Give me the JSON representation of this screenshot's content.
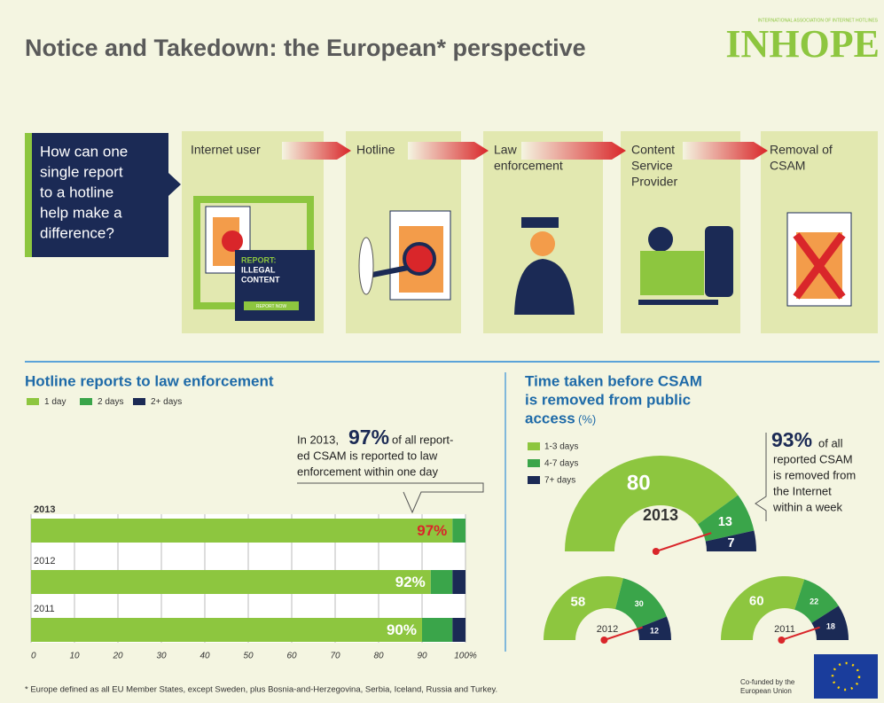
{
  "header": {
    "title": "Notice and Takedown: the European* perspective",
    "logo_tagline": "INTERNATIONAL ASSOCIATION OF INTERNET HOTLINES",
    "logo": "INHOPE"
  },
  "question": [
    "How can one",
    "single report",
    "to a hotline",
    "help make a",
    "difference?"
  ],
  "steps": [
    [
      "Internet user"
    ],
    [
      "Hotline"
    ],
    [
      "Law",
      "enforcement"
    ],
    [
      "Content",
      "Service",
      "Provider"
    ],
    [
      "Removal of",
      "CSAM"
    ]
  ],
  "illustration": {
    "report": [
      "REPORT:",
      "ILLEGAL",
      "CONTENT"
    ],
    "button": "REPORT NOW"
  },
  "chart_data": [
    {
      "type": "stacked-bar",
      "title": "Hotline reports to law enforcement",
      "categories": [
        "2013",
        "2012",
        "2011"
      ],
      "series": [
        {
          "name": "1 day",
          "color": "#8dc63f",
          "values": [
            97,
            92,
            90
          ],
          "value_labels": [
            "97%",
            "92%",
            "90%"
          ]
        },
        {
          "name": "2 days",
          "color": "#3aa54a",
          "values": [
            3,
            5,
            7
          ]
        },
        {
          "name": "2+ days",
          "color": "#1b2a55",
          "values": [
            0,
            3,
            3
          ]
        }
      ],
      "xlim": [
        0,
        100
      ],
      "xticks": [
        0,
        10,
        20,
        30,
        40,
        50,
        60,
        70,
        80,
        90,
        {
          "value": 100,
          "label": "100%"
        }
      ],
      "grid": true,
      "annotation": {
        "prefix": "In 2013,",
        "highlight": "97%",
        "lines": [
          "of all report-",
          "ed CSAM is reported to law",
          "enforcement within one day"
        ]
      }
    },
    {
      "type": "gauge",
      "title": [
        "Time taken before CSAM",
        "is removed from public",
        "access"
      ],
      "unit": "(%)",
      "categories": [
        "2013",
        "2012",
        "2011"
      ],
      "series": [
        {
          "name": "1-3 days",
          "color": "#8dc63f",
          "values": [
            80,
            58,
            60
          ]
        },
        {
          "name": "4-7 days",
          "color": "#3aa54a",
          "values": [
            13,
            30,
            22
          ]
        },
        {
          "name": "7+ days",
          "color": "#1b2a55",
          "values": [
            7,
            12,
            18
          ]
        }
      ],
      "annotation": {
        "highlight": "93%",
        "lines": [
          "of all",
          "reported CSAM",
          "is removed from",
          "the Internet",
          "within a week"
        ]
      }
    }
  ],
  "footer": {
    "note": "* Europe defined as all EU Member States, except Sweden, plus Bosnia-and-Herzegovina, Serbia, Iceland, Russia and Turkey.",
    "cofunded": [
      "Co-funded by the",
      "European Union"
    ]
  }
}
